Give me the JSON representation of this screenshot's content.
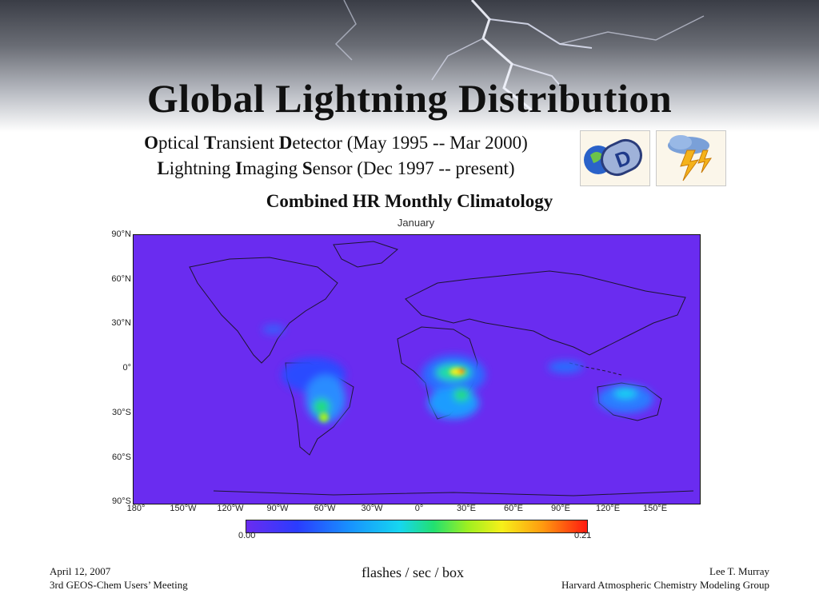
{
  "slide": {
    "title": "Global Lightning Distribution",
    "otd": {
      "o": "O",
      "o_rest": "ptical ",
      "t": "T",
      "t_rest": "ransient ",
      "d": "D",
      "d_rest": "etector (May 1995 -- Mar 2000)"
    },
    "lis": {
      "l": "L",
      "l_rest": "ightning ",
      "i": "I",
      "i_rest": "maging ",
      "s": "S",
      "s_rest": "ensor (Dec 1997 -- present)"
    },
    "logos": {
      "otd_logo": "OTD",
      "lis_logo_icon": "lightning-cloud-icon"
    },
    "subtitle": "Combined HR Monthly Climatology",
    "map_title": "January",
    "lat_labels": [
      "90°N",
      "60°N",
      "30°N",
      "0°",
      "30°S",
      "60°S",
      "90°S"
    ],
    "lon_labels": [
      "180°",
      "150°W",
      "120°W",
      "90°W",
      "60°W",
      "30°W",
      "0°",
      "30°E",
      "60°E",
      "90°E",
      "120°E",
      "150°E"
    ],
    "colorbar": {
      "min": "0.00",
      "max": "0.21"
    },
    "units": "flashes / sec / box",
    "footer_left": {
      "date": "April 12, 2007",
      "meeting": "3rd GEOS-Chem Users’ Meeting"
    },
    "footer_right": {
      "author": "Lee T. Murray",
      "group": "Harvard Atmospheric Chemistry Modeling Group"
    },
    "colors": {
      "background_field": "#6a2cf0",
      "colorbar_low": "#6a2cf0",
      "colorbar_high": "#ff1a10"
    }
  }
}
